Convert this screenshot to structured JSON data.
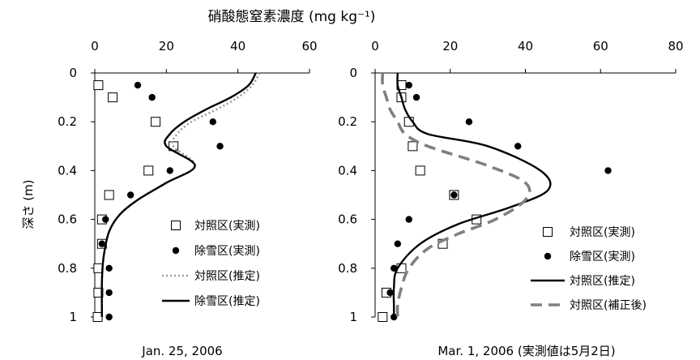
{
  "title": "硝酸態窒素濃度 (mg kg⁻¹)",
  "ylabel": "深さ (m)",
  "chart_data": [
    {
      "type": "scatter",
      "caption": "Jan. 25, 2006",
      "xlim": [
        0,
        60
      ],
      "xticks": [
        "0",
        "20",
        "40",
        "60"
      ],
      "ylim": [
        0,
        1
      ],
      "yticks": [
        "0",
        "0.2",
        "0.4",
        "0.6",
        "0.8",
        "1"
      ],
      "y_inverted": true,
      "legend": "center-right",
      "series": [
        {
          "name": "対照区(実測)",
          "kind": "square-open",
          "x": [
            1,
            5,
            17,
            22,
            15,
            4,
            2,
            2,
            1,
            1,
            0.8
          ],
          "y": [
            0.05,
            0.1,
            0.2,
            0.3,
            0.4,
            0.5,
            0.6,
            0.7,
            0.8,
            0.9,
            1.0
          ]
        },
        {
          "name": "除雪区(実測)",
          "kind": "dot",
          "x": [
            12,
            16,
            33,
            35,
            21,
            10,
            3,
            2,
            4,
            4,
            4
          ],
          "y": [
            0.05,
            0.1,
            0.2,
            0.3,
            0.4,
            0.5,
            0.6,
            0.7,
            0.8,
            0.9,
            1.0
          ]
        },
        {
          "name": "対照区(推定)",
          "kind": "dotted-line",
          "color": "#999999",
          "x": [
            46,
            44,
            40,
            34,
            27,
            23,
            22,
            28,
            20,
            12,
            7,
            4,
            2.5,
            2,
            2
          ],
          "y": [
            0,
            0.05,
            0.1,
            0.15,
            0.2,
            0.25,
            0.3,
            0.38,
            0.45,
            0.52,
            0.58,
            0.65,
            0.75,
            0.85,
            1.0
          ]
        },
        {
          "name": "除雪区(推定)",
          "kind": "solid-line",
          "x": [
            45,
            43,
            38,
            31,
            25,
            21,
            20,
            28,
            20,
            12,
            7,
            4,
            2.5,
            2,
            2
          ],
          "y": [
            0,
            0.05,
            0.1,
            0.15,
            0.2,
            0.25,
            0.3,
            0.38,
            0.45,
            0.52,
            0.58,
            0.65,
            0.75,
            0.85,
            1.0
          ]
        }
      ]
    },
    {
      "type": "scatter",
      "caption": "Mar. 1, 2006 (実測値は5月2日)",
      "xlim": [
        0,
        80
      ],
      "xticks": [
        "0",
        "20",
        "40",
        "60",
        "80"
      ],
      "ylim": [
        0,
        1
      ],
      "yticks": [
        "0",
        "0.2",
        "0.4",
        "0.6",
        "0.8",
        "1"
      ],
      "y_inverted": true,
      "legend": "bottom-right",
      "series": [
        {
          "name": "対照区(実測)",
          "kind": "square-open",
          "x": [
            7,
            7,
            9,
            10,
            12,
            21,
            27,
            18,
            7,
            3,
            2
          ],
          "y": [
            0.05,
            0.1,
            0.2,
            0.3,
            0.4,
            0.5,
            0.6,
            0.7,
            0.8,
            0.9,
            1.0
          ]
        },
        {
          "name": "除雪区(実測)",
          "kind": "dot",
          "x": [
            9,
            11,
            25,
            38,
            62,
            21,
            9,
            6,
            5,
            4,
            5
          ],
          "y": [
            0.05,
            0.1,
            0.2,
            0.3,
            0.4,
            0.5,
            0.6,
            0.7,
            0.8,
            0.9,
            1.0
          ]
        },
        {
          "name": "対照区(推定)",
          "kind": "solid-line",
          "x": [
            6,
            6,
            7,
            8,
            10,
            14,
            30,
            44,
            46,
            36,
            22,
            12,
            6,
            5,
            5,
            5
          ],
          "y": [
            0,
            0.05,
            0.1,
            0.15,
            0.2,
            0.25,
            0.3,
            0.4,
            0.48,
            0.55,
            0.62,
            0.7,
            0.8,
            0.88,
            0.95,
            1.0
          ]
        },
        {
          "name": "対照区(補正後)",
          "kind": "dashed-line",
          "color": "#808080",
          "x": [
            2,
            2,
            3,
            4,
            6,
            8,
            14,
            30,
            40,
            40,
            32,
            22,
            14,
            9,
            7,
            6,
            6
          ],
          "y": [
            0,
            0.05,
            0.1,
            0.15,
            0.2,
            0.25,
            0.3,
            0.38,
            0.45,
            0.52,
            0.6,
            0.66,
            0.72,
            0.8,
            0.88,
            0.95,
            1.0
          ]
        }
      ]
    }
  ]
}
